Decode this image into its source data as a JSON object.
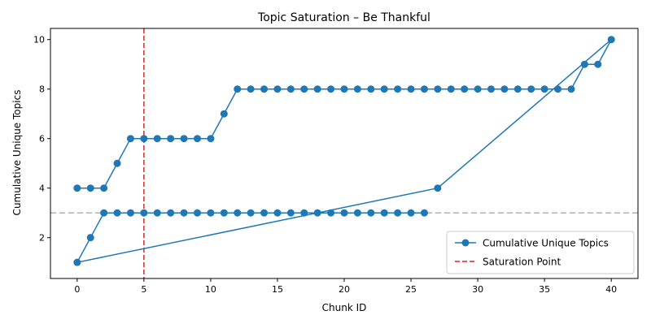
{
  "chart_data": {
    "type": "line",
    "title": "Topic Saturation – Be Thankful",
    "xlabel": "Chunk ID",
    "ylabel": "Cumulative Unique Topics",
    "xlim": [
      -2,
      42
    ],
    "ylim": [
      0.35,
      10.45
    ],
    "xticks": [
      0,
      5,
      10,
      15,
      20,
      25,
      30,
      35,
      40
    ],
    "yticks": [
      2,
      4,
      6,
      8,
      10
    ],
    "grid": false,
    "legend_position": "lower right",
    "series": [
      {
        "name": "Cumulative Unique Topics",
        "color": "#1f77b4",
        "marker": "circle",
        "points": [
          [
            0,
            4
          ],
          [
            1,
            4
          ],
          [
            2,
            4
          ],
          [
            3,
            5
          ],
          [
            4,
            6
          ],
          [
            5,
            6
          ],
          [
            6,
            6
          ],
          [
            7,
            6
          ],
          [
            8,
            6
          ],
          [
            9,
            6
          ],
          [
            10,
            6
          ],
          [
            11,
            7
          ],
          [
            12,
            8
          ],
          [
            13,
            8
          ],
          [
            14,
            8
          ],
          [
            15,
            8
          ],
          [
            16,
            8
          ],
          [
            17,
            8
          ],
          [
            18,
            8
          ],
          [
            19,
            8
          ],
          [
            20,
            8
          ],
          [
            21,
            8
          ],
          [
            22,
            8
          ],
          [
            23,
            8
          ],
          [
            24,
            8
          ],
          [
            25,
            8
          ],
          [
            26,
            8
          ],
          [
            27,
            8
          ],
          [
            28,
            8
          ],
          [
            29,
            8
          ],
          [
            30,
            8
          ],
          [
            31,
            8
          ],
          [
            32,
            8
          ],
          [
            33,
            8
          ],
          [
            34,
            8
          ],
          [
            35,
            8
          ],
          [
            36,
            8
          ],
          [
            37,
            8
          ],
          [
            38,
            9
          ],
          [
            39,
            9
          ],
          [
            40,
            10
          ],
          [
            27,
            4
          ],
          [
            0,
            1
          ],
          [
            1,
            2
          ],
          [
            2,
            3
          ],
          [
            3,
            3
          ],
          [
            4,
            3
          ],
          [
            5,
            3
          ],
          [
            6,
            3
          ],
          [
            7,
            3
          ],
          [
            8,
            3
          ],
          [
            9,
            3
          ],
          [
            10,
            3
          ],
          [
            11,
            3
          ],
          [
            12,
            3
          ],
          [
            13,
            3
          ],
          [
            14,
            3
          ],
          [
            15,
            3
          ],
          [
            16,
            3
          ],
          [
            17,
            3
          ],
          [
            18,
            3
          ],
          [
            19,
            3
          ],
          [
            20,
            3
          ],
          [
            21,
            3
          ],
          [
            22,
            3
          ],
          [
            23,
            3
          ],
          [
            24,
            3
          ],
          [
            25,
            3
          ],
          [
            26,
            3
          ]
        ]
      }
    ],
    "reference_lines": [
      {
        "name": "Saturation Point",
        "orientation": "vertical",
        "value": 5,
        "color": "#d62728",
        "style": "dashed",
        "in_legend": true
      },
      {
        "orientation": "horizontal",
        "value": 3,
        "color": "#b0b0b0",
        "style": "dashed",
        "in_legend": false
      }
    ]
  }
}
